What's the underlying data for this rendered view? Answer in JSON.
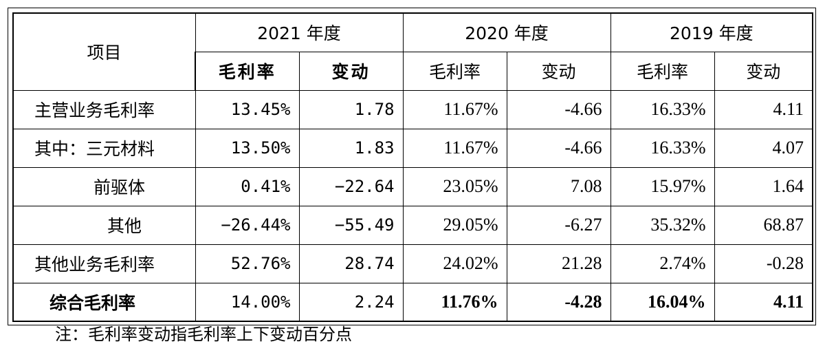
{
  "table": {
    "header": {
      "item": "项目",
      "years": [
        "2021 年度",
        "2020 年度",
        "2019 年度"
      ],
      "sub": [
        "毛利率",
        "变动"
      ]
    },
    "rows": [
      {
        "label": "主营业务毛利率",
        "values": [
          "13.45%",
          "1.78",
          "11.67%",
          "-4.66",
          "16.33%",
          "4.11"
        ]
      },
      {
        "label": "其中：三元材料",
        "values": [
          "13.50%",
          "1.83",
          "11.67%",
          "-4.66",
          "16.33%",
          "4.07"
        ]
      },
      {
        "label": "前驱体",
        "values": [
          "0.41%",
          "−22.64",
          "23.05%",
          "7.08",
          "15.97%",
          "1.64"
        ]
      },
      {
        "label": "其他",
        "values": [
          "−26.44%",
          "−55.49",
          "29.05%",
          "-6.27",
          "35.32%",
          "68.87"
        ]
      },
      {
        "label": "其他业务毛利率",
        "values": [
          "52.76%",
          "28.74",
          "24.02%",
          "21.28",
          "2.74%",
          "-0.28"
        ]
      },
      {
        "label": "综合毛利率",
        "values": [
          "14.00%",
          "2.24",
          "11.76%",
          "-4.28",
          "16.04%",
          "4.11"
        ]
      }
    ]
  },
  "footnote": "注：毛利率变动指毛利率上下变动百分点"
}
